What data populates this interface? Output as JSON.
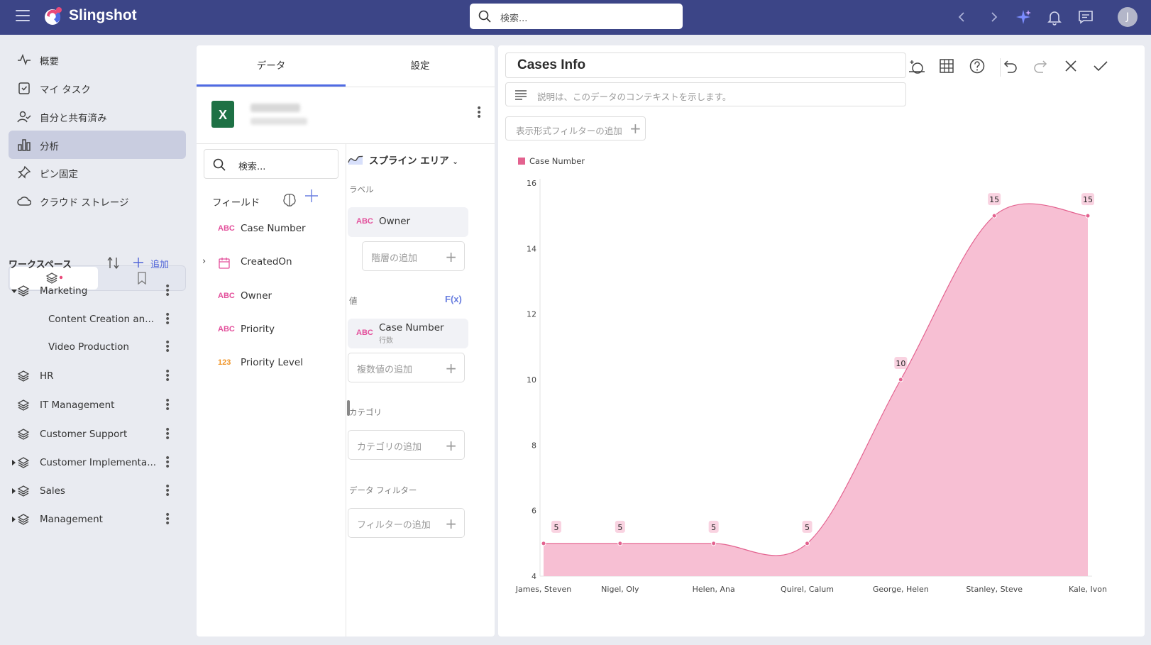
{
  "app": {
    "name": "Slingshot",
    "search_placeholder": "検索..."
  },
  "user": {
    "initial": "J"
  },
  "nav": [
    {
      "label": "概要",
      "icon": "pulse-icon"
    },
    {
      "label": "マイ タスク",
      "icon": "task-icon"
    },
    {
      "label": "自分と共有済み",
      "icon": "shared-user-icon"
    },
    {
      "label": "分析",
      "icon": "bar-chart-icon",
      "active": true
    },
    {
      "label": "ピン固定",
      "icon": "pin-icon"
    },
    {
      "label": "クラウド ストレージ",
      "icon": "cloud-icon"
    }
  ],
  "workspace": {
    "title": "ワークスペース",
    "add_label": "追加",
    "items": [
      {
        "label": "Marketing",
        "expanded": true
      },
      {
        "label": "Content Creation an...",
        "child": true
      },
      {
        "label": "Video Production",
        "child": true
      },
      {
        "label": "HR"
      },
      {
        "label": "IT Management"
      },
      {
        "label": "Customer Support"
      },
      {
        "label": "Customer Implementa...",
        "collapsed": true
      },
      {
        "label": "Sales",
        "collapsed": true
      },
      {
        "label": "Management",
        "collapsed": true
      }
    ]
  },
  "editor": {
    "tabs": [
      "データ",
      "設定"
    ],
    "field_search": "検索...",
    "fields_label": "フィールド",
    "fields": [
      {
        "type": "ABC",
        "name": "Case Number"
      },
      {
        "type": "date",
        "name": "CreatedOn"
      },
      {
        "type": "ABC",
        "name": "Owner"
      },
      {
        "type": "ABC",
        "name": "Priority"
      },
      {
        "type": "123",
        "name": "Priority Level"
      }
    ],
    "viz_type": "スプライン エリア",
    "label_section": "ラベル",
    "label_field": {
      "type": "ABC",
      "name": "Owner"
    },
    "add_hierarchy": "階層の追加",
    "value_section": "値",
    "fx": "F(x)",
    "value_field": {
      "type": "ABC",
      "name": "Case Number",
      "sub": "行数"
    },
    "add_value": "複数値の追加",
    "category_section": "カテゴリ",
    "add_category": "カテゴリの追加",
    "filter_section": "データ フィルター",
    "add_filter": "フィルターの追加"
  },
  "viz": {
    "title": "Cases Info",
    "description_placeholder": "説明は、このデータのコンテキストを示します。",
    "add_filter": "表示形式フィルターの追加"
  },
  "colors": {
    "accent": "#4f6be3",
    "series": "#f7bfd3",
    "series_line": "#e3628f",
    "header": "#3c4587"
  },
  "chart_data": {
    "type": "area",
    "subtype": "spline",
    "categories": [
      "James, Steven",
      "Nigel, Oly",
      "Helen, Ana",
      "Quirel, Calum",
      "George, Helen",
      "Stanley, Steve",
      "Kale, Ivon"
    ],
    "series": [
      {
        "name": "Case Number",
        "values": [
          5,
          5,
          5,
          5,
          10,
          15,
          15
        ]
      }
    ],
    "ylim": [
      4,
      16
    ],
    "yticks": [
      4,
      6,
      8,
      10,
      12,
      14,
      16
    ],
    "legend": "top-left",
    "grid": false
  }
}
